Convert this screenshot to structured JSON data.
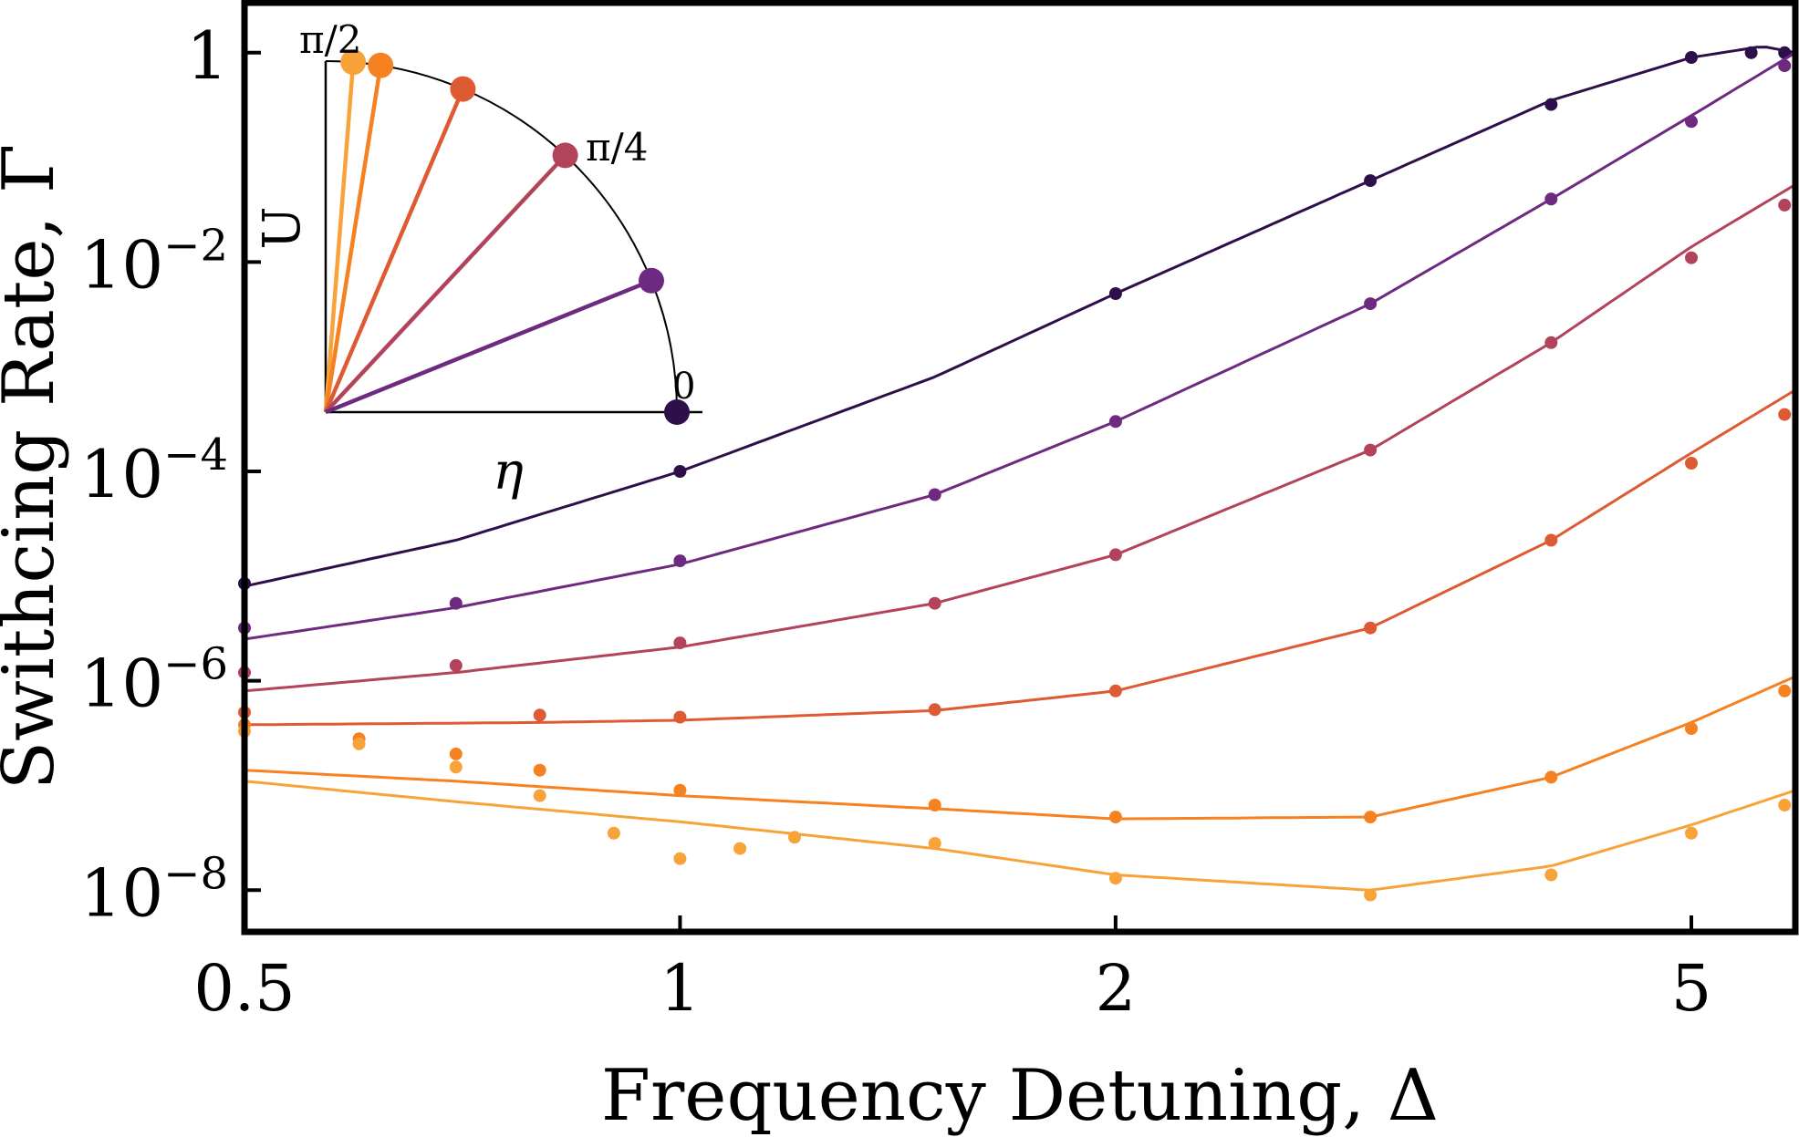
{
  "chart_data": {
    "type": "scatter",
    "xlabel": "Frequency Detuning, Δ",
    "ylabel": "Swithcing Rate, Γ",
    "xscale": "log",
    "yscale": "log",
    "xlim": [
      0.5,
      5.9
    ],
    "ylim": [
      4e-09,
      3
    ],
    "x_ticks": [
      {
        "value": 0.5,
        "label": "0.5"
      },
      {
        "value": 1,
        "label": "1"
      },
      {
        "value": 2,
        "label": "2"
      },
      {
        "value": 5,
        "label": "5"
      }
    ],
    "y_ticks": [
      {
        "value": 1,
        "label": "1",
        "exp": ""
      },
      {
        "value": 0.01,
        "label": "10",
        "exp": "−2"
      },
      {
        "value": 0.0001,
        "label": "10",
        "exp": "−4"
      },
      {
        "value": 1e-06,
        "label": "10",
        "exp": "−6"
      },
      {
        "value": 1e-08,
        "label": "10",
        "exp": "−8"
      }
    ],
    "grid": false,
    "series": [
      {
        "color": "#2e0f4a",
        "fit": [
          [
            0.5,
            8e-06
          ],
          [
            0.7,
            2.2e-05
          ],
          [
            1.0,
            0.0001
          ],
          [
            1.5,
            0.0008
          ],
          [
            2.0,
            0.005
          ],
          [
            3.0,
            0.06
          ],
          [
            4.0,
            0.35
          ],
          [
            5.0,
            0.9
          ],
          [
            5.6,
            1.15
          ],
          [
            5.9,
            1.0
          ]
        ],
        "points": [
          [
            0.5,
            8.5e-06
          ],
          [
            1.0,
            0.0001
          ],
          [
            2.0,
            0.005
          ],
          [
            3.0,
            0.06
          ],
          [
            4.0,
            0.32
          ],
          [
            5.0,
            0.9
          ],
          [
            5.5,
            1.0
          ],
          [
            5.8,
            1.0
          ]
        ]
      },
      {
        "color": "#6e2a80",
        "fit": [
          [
            0.5,
            2.5e-06
          ],
          [
            0.7,
            5e-06
          ],
          [
            1.0,
            1.3e-05
          ],
          [
            1.5,
            6e-05
          ],
          [
            2.0,
            0.0003
          ],
          [
            3.0,
            0.004
          ],
          [
            4.0,
            0.04
          ],
          [
            5.0,
            0.25
          ],
          [
            5.9,
            1.0
          ]
        ],
        "points": [
          [
            0.5,
            3.2e-06
          ],
          [
            0.7,
            5.5e-06
          ],
          [
            1.0,
            1.4e-05
          ],
          [
            1.5,
            6e-05
          ],
          [
            2.0,
            0.0003
          ],
          [
            3.0,
            0.004
          ],
          [
            4.0,
            0.04
          ],
          [
            5.0,
            0.22
          ],
          [
            5.8,
            0.75
          ]
        ]
      },
      {
        "color": "#b3435b",
        "fit": [
          [
            0.5,
            8e-07
          ],
          [
            0.7,
            1.2e-06
          ],
          [
            1.0,
            2.1e-06
          ],
          [
            1.5,
            5.5e-06
          ],
          [
            2.0,
            1.6e-05
          ],
          [
            3.0,
            0.00016
          ],
          [
            4.0,
            0.0017
          ],
          [
            5.0,
            0.014
          ],
          [
            5.9,
            0.055
          ]
        ],
        "points": [
          [
            0.5,
            1.2e-06
          ],
          [
            0.7,
            1.4e-06
          ],
          [
            1.0,
            2.3e-06
          ],
          [
            1.5,
            5.5e-06
          ],
          [
            2.0,
            1.6e-05
          ],
          [
            3.0,
            0.00016
          ],
          [
            4.0,
            0.0017
          ],
          [
            5.0,
            0.011
          ],
          [
            5.8,
            0.035
          ]
        ]
      },
      {
        "color": "#de5a33",
        "fit": [
          [
            0.5,
            3.8e-07
          ],
          [
            0.8,
            4e-07
          ],
          [
            1.0,
            4.2e-07
          ],
          [
            1.5,
            5.2e-07
          ],
          [
            2.0,
            8e-07
          ],
          [
            3.0,
            3.2e-06
          ],
          [
            4.0,
            2.2e-05
          ],
          [
            5.0,
            0.00015
          ],
          [
            5.9,
            0.0006
          ]
        ],
        "points": [
          [
            0.5,
            5e-07
          ],
          [
            0.8,
            4.7e-07
          ],
          [
            1.0,
            4.5e-07
          ],
          [
            1.5,
            5.3e-07
          ],
          [
            2.0,
            8e-07
          ],
          [
            3.0,
            3.2e-06
          ],
          [
            4.0,
            2.2e-05
          ],
          [
            5.0,
            0.00012
          ],
          [
            5.8,
            0.00035
          ]
        ]
      },
      {
        "color": "#f58120",
        "fit": [
          [
            0.5,
            1.4e-07
          ],
          [
            0.7,
            1.1e-07
          ],
          [
            1.0,
            8e-08
          ],
          [
            1.5,
            6e-08
          ],
          [
            2.0,
            4.8e-08
          ],
          [
            3.0,
            5e-08
          ],
          [
            4.0,
            1.2e-07
          ],
          [
            5.0,
            4e-07
          ],
          [
            5.9,
            1.1e-06
          ]
        ],
        "points": [
          [
            0.5,
            3.8e-07
          ],
          [
            0.6,
            2.8e-07
          ],
          [
            0.7,
            2e-07
          ],
          [
            0.8,
            1.4e-07
          ],
          [
            1.0,
            9e-08
          ],
          [
            1.5,
            6.5e-08
          ],
          [
            2.0,
            5e-08
          ],
          [
            3.0,
            5e-08
          ],
          [
            4.0,
            1.2e-07
          ],
          [
            5.0,
            3.5e-07
          ],
          [
            5.8,
            8e-07
          ]
        ]
      },
      {
        "color": "#f8a23a",
        "fit": [
          [
            0.5,
            1.1e-07
          ],
          [
            0.7,
            7e-08
          ],
          [
            1.0,
            4.5e-08
          ],
          [
            1.5,
            2.5e-08
          ],
          [
            2.0,
            1.4e-08
          ],
          [
            3.0,
            1e-08
          ],
          [
            4.0,
            1.7e-08
          ],
          [
            5.0,
            4.2e-08
          ],
          [
            5.9,
            9e-08
          ]
        ],
        "points": [
          [
            0.5,
            3.3e-07
          ],
          [
            0.6,
            2.5e-07
          ],
          [
            0.7,
            1.5e-07
          ],
          [
            0.8,
            8e-08
          ],
          [
            0.9,
            3.5e-08
          ],
          [
            1.0,
            2e-08
          ],
          [
            1.1,
            2.5e-08
          ],
          [
            1.2,
            3.2e-08
          ],
          [
            1.5,
            2.8e-08
          ],
          [
            2.0,
            1.3e-08
          ],
          [
            3.0,
            9e-09
          ],
          [
            4.0,
            1.4e-08
          ],
          [
            5.0,
            3.5e-08
          ],
          [
            5.8,
            6.5e-08
          ]
        ]
      }
    ],
    "inset": {
      "xlabel": "η",
      "ylabel": "U",
      "labels": {
        "top": "π/2",
        "mid": "π/4",
        "zero": "0"
      },
      "angles_deg": [
        85.5,
        81,
        67,
        47,
        22,
        0
      ],
      "colors": [
        "#f8a23a",
        "#f58120",
        "#de5a33",
        "#b3435b",
        "#6e2a80",
        "#2e0f4a"
      ]
    }
  }
}
